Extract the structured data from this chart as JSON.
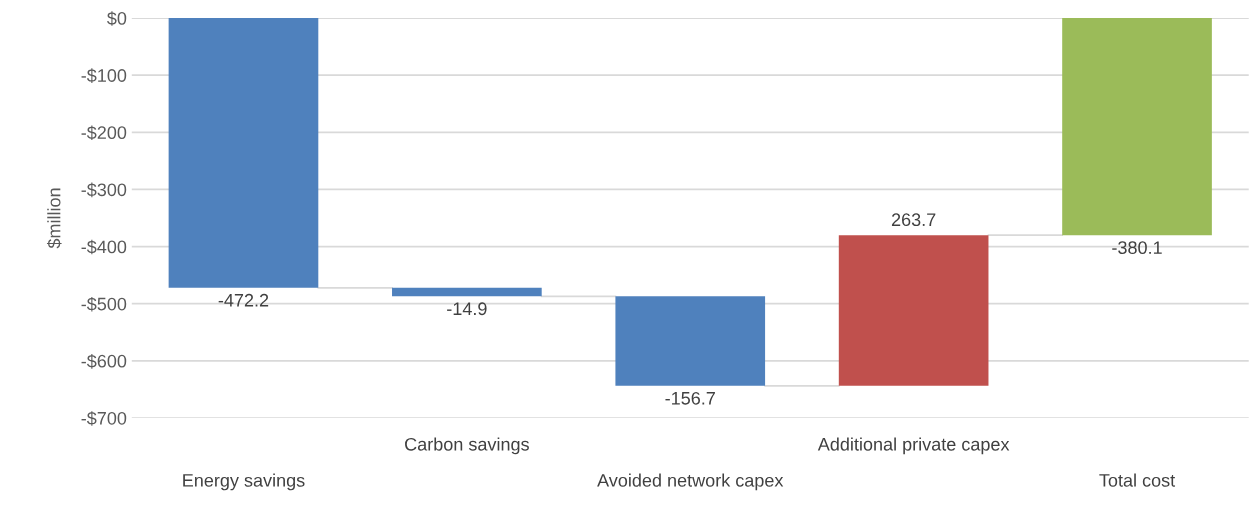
{
  "chart_data": {
    "type": "bar",
    "ylabel": "$million",
    "categories": [
      "Energy savings",
      "Carbon savings",
      "Avoided network capex",
      "Additional private capex",
      "Total cost"
    ],
    "values": [
      -472.2,
      -14.9,
      -156.7,
      263.7,
      -380.1
    ],
    "base": [
      0,
      -472.2,
      -487.1,
      -643.8,
      0
    ],
    "colors": [
      "#4f81bd",
      "#4f81bd",
      "#4f81bd",
      "#c0504d",
      "#9bbb59"
    ],
    "ylim": [
      -700,
      0
    ],
    "yticks": [
      {
        "value": -700,
        "label": "-$700"
      },
      {
        "value": -600,
        "label": "-$600"
      },
      {
        "value": -500,
        "label": "-$500"
      },
      {
        "value": -400,
        "label": "-$400"
      },
      {
        "value": -300,
        "label": "-$300"
      },
      {
        "value": -200,
        "label": "-$200"
      },
      {
        "value": -100,
        "label": "-$100"
      },
      {
        "value": 0,
        "label": "$0"
      }
    ],
    "grid": "y",
    "data_labels": true
  }
}
